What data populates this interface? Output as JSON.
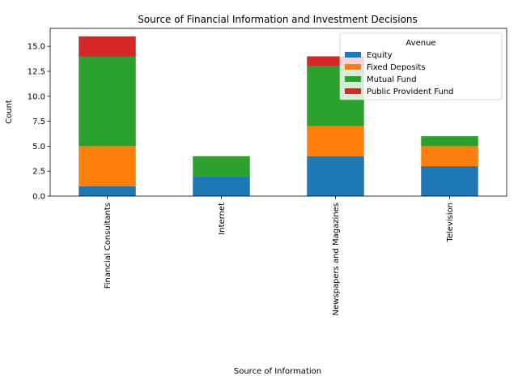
{
  "chart_data": {
    "type": "bar",
    "stacked": true,
    "title": "Source of Financial Information and Investment Decisions",
    "xlabel": "Source of Information",
    "ylabel": "Count",
    "categories": [
      "Financial Consultants",
      "Internet",
      "Newspapers and Magazines",
      "Television"
    ],
    "ylim": [
      0,
      16.8
    ],
    "yticks": [
      "0.0",
      "2.5",
      "5.0",
      "7.5",
      "10.0",
      "12.5",
      "15.0"
    ],
    "grid": false,
    "legend": {
      "title": "Avenue",
      "placement": "top-right"
    },
    "series": [
      {
        "name": "Equity",
        "color": "#1f77b4",
        "values": [
          1,
          2,
          4,
          3
        ]
      },
      {
        "name": "Fixed Deposits",
        "color": "#ff7f0e",
        "values": [
          4,
          0,
          3,
          2
        ]
      },
      {
        "name": "Mutual Fund",
        "color": "#2ca02c",
        "values": [
          9,
          2,
          6,
          1
        ]
      },
      {
        "name": "Public Provident Fund",
        "color": "#d62728",
        "values": [
          2,
          0,
          1,
          0
        ]
      }
    ]
  }
}
